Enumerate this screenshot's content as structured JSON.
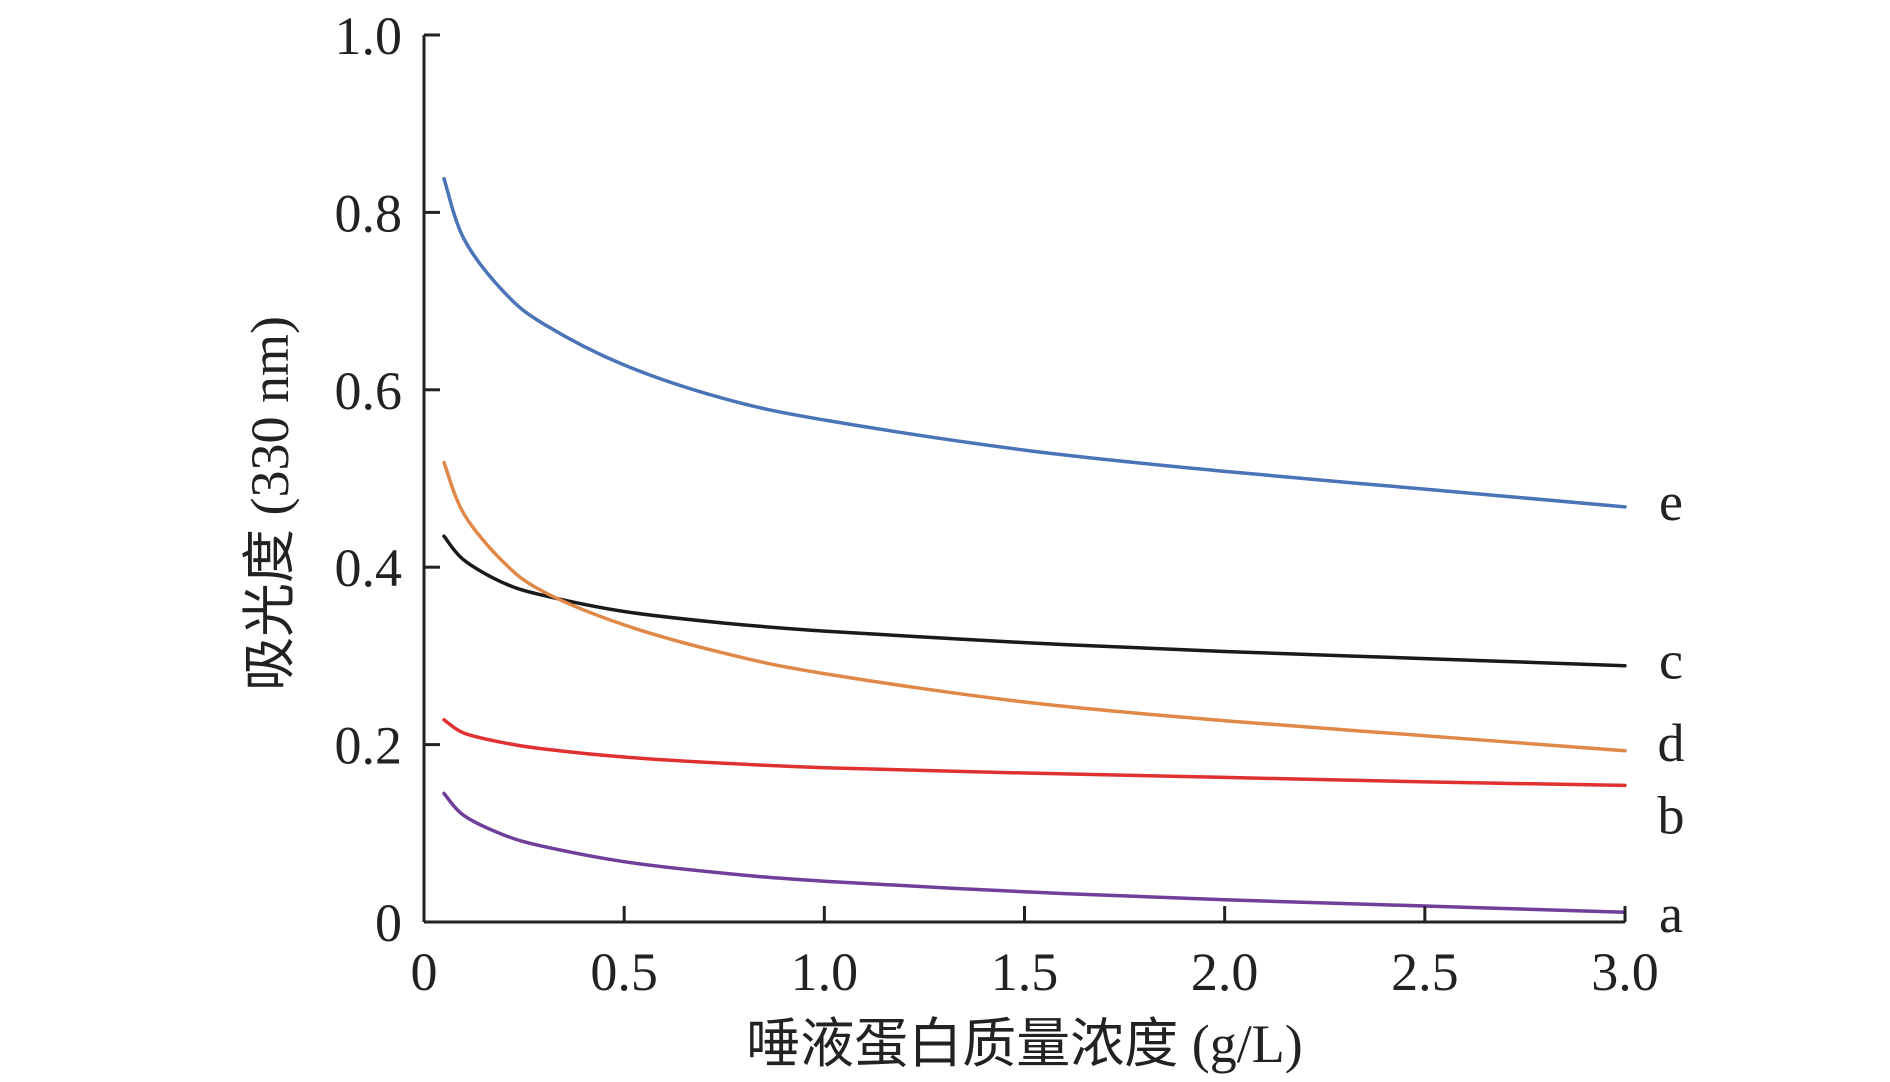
{
  "chart_data": {
    "type": "line",
    "xlabel": "唾液蛋白质量浓度 (g/L)",
    "ylabel": "吸光度 (330 nm)",
    "xlim": [
      0,
      3.0
    ],
    "ylim": [
      0,
      1.0
    ],
    "xticks": [
      0,
      0.5,
      1.0,
      1.5,
      2.0,
      2.5,
      3.0
    ],
    "xtick_labels": [
      "0",
      "0.5",
      "1.0",
      "1.5",
      "2.0",
      "2.5",
      "3.0"
    ],
    "yticks": [
      0,
      0.2,
      0.4,
      0.6,
      0.8,
      1.0
    ],
    "ytick_labels": [
      "0",
      "0.2",
      "0.4",
      "0.6",
      "0.8",
      "1.0"
    ],
    "grid": false,
    "x": [
      0.05,
      0.1,
      0.2,
      0.3,
      0.5,
      0.75,
      1.0,
      1.5,
      2.0,
      2.5,
      3.0
    ],
    "series": [
      {
        "name": "a",
        "color": "#6f3f9a",
        "values": [
          0.145,
          0.12,
          0.098,
          0.085,
          0.068,
          0.055,
          0.046,
          0.034,
          0.025,
          0.018,
          0.011
        ]
      },
      {
        "name": "b",
        "color": "#e03030",
        "values": [
          0.228,
          0.213,
          0.202,
          0.195,
          0.186,
          0.179,
          0.174,
          0.168,
          0.163,
          0.158,
          0.154
        ]
      },
      {
        "name": "c",
        "color": "#1a1a1a",
        "values": [
          0.435,
          0.408,
          0.382,
          0.368,
          0.35,
          0.337,
          0.328,
          0.315,
          0.305,
          0.297,
          0.289
        ]
      },
      {
        "name": "d",
        "color": "#e08848",
        "values": [
          0.518,
          0.46,
          0.405,
          0.372,
          0.335,
          0.303,
          0.28,
          0.248,
          0.227,
          0.21,
          0.193
        ]
      },
      {
        "name": "e",
        "color": "#4a74b8",
        "values": [
          0.838,
          0.77,
          0.71,
          0.674,
          0.628,
          0.59,
          0.566,
          0.532,
          0.508,
          0.488,
          0.468
        ]
      }
    ]
  }
}
